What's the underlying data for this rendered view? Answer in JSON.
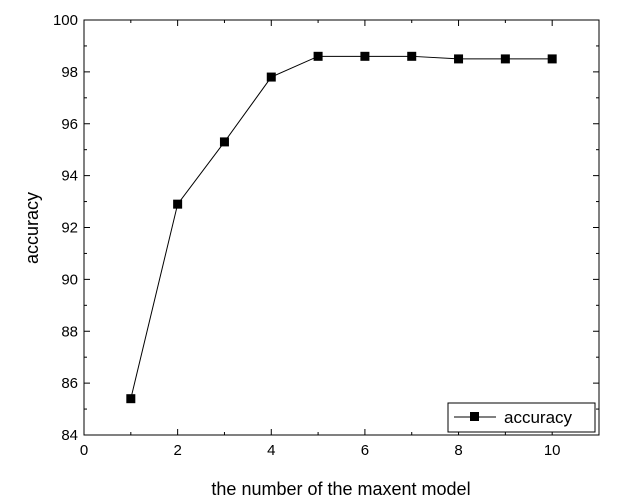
{
  "chart_data": {
    "type": "line",
    "title": "",
    "xlabel": "the number of the maxent model",
    "ylabel": "accuracy",
    "xlim": [
      0,
      11
    ],
    "ylim": [
      84,
      100
    ],
    "xticks": [
      0,
      2,
      4,
      6,
      8,
      10
    ],
    "yticks": [
      84,
      86,
      88,
      90,
      92,
      94,
      96,
      98,
      100
    ],
    "grid": false,
    "legend_position": "bottom-right",
    "series": [
      {
        "name": "accuracy",
        "color": "#000000",
        "marker": "square",
        "x": [
          1,
          2,
          3,
          4,
          5,
          6,
          7,
          8,
          9,
          10
        ],
        "y": [
          85.4,
          92.9,
          95.3,
          97.8,
          98.6,
          98.6,
          98.6,
          98.5,
          98.5,
          98.5
        ]
      }
    ]
  }
}
